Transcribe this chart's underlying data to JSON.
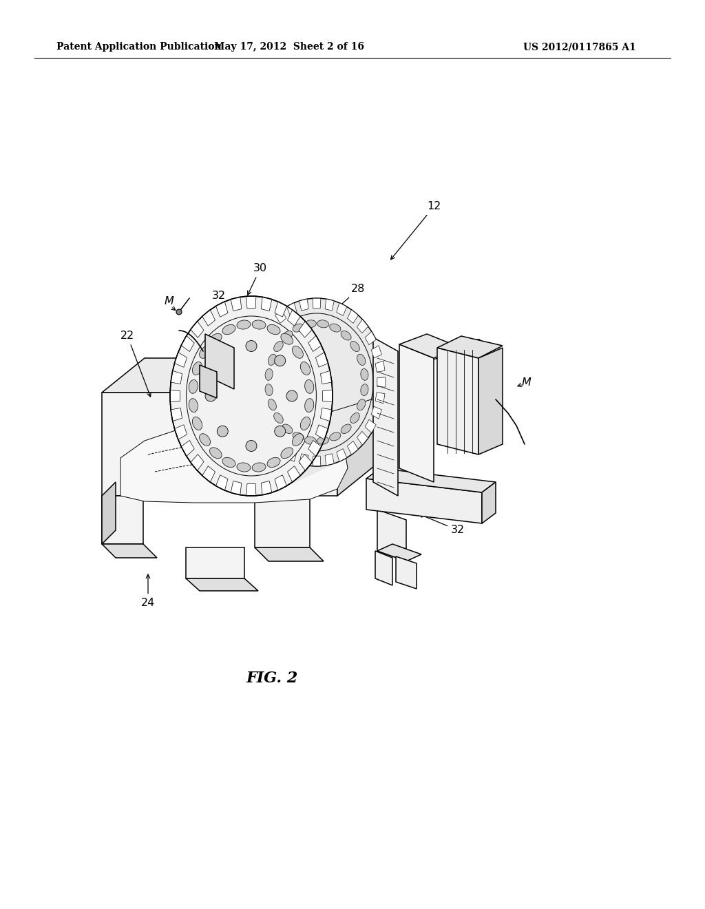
{
  "bg_color": "#ffffff",
  "lc": "#000000",
  "header_left": "Patent Application Publication",
  "header_mid": "May 17, 2012  Sheet 2 of 16",
  "header_right": "US 2012/0117865 A1",
  "fig_label": "FIG. 2",
  "header_fontsize": 10,
  "label_fontsize": 11.5,
  "fig_label_fontsize": 16,
  "lw": 1.1,
  "lw_thin": 0.7
}
